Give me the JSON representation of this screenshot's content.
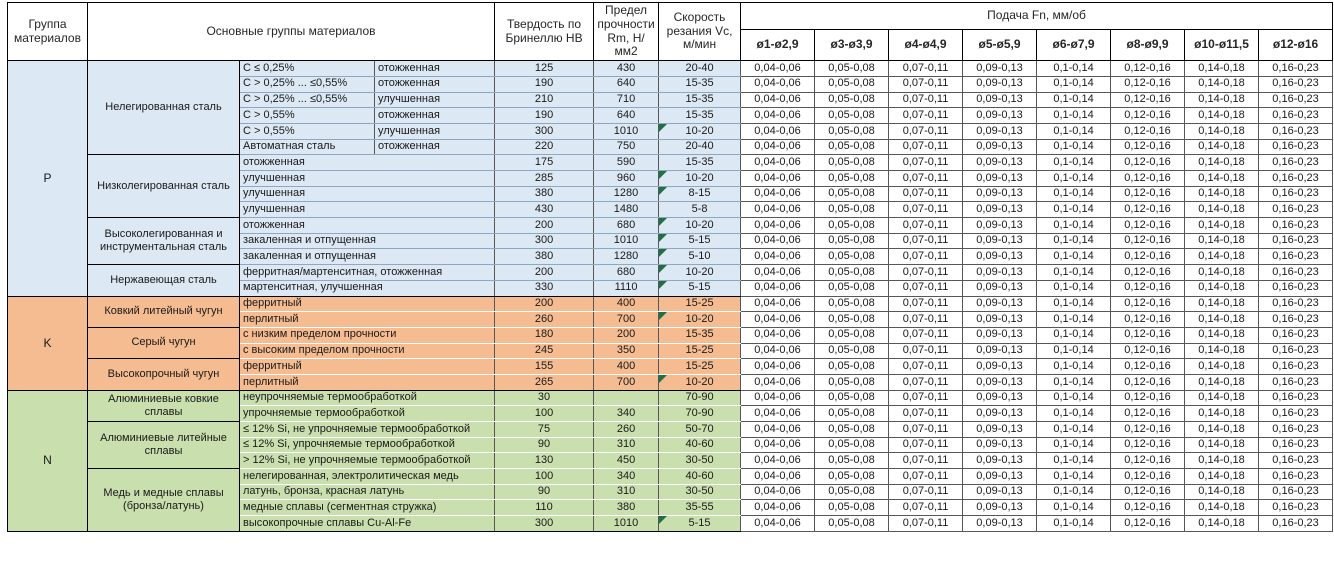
{
  "table": {
    "header": {
      "group_col": "Группа материалов",
      "materials_col": "Основные группы материалов",
      "hardness_col": "Твердость по Бринеллю HB",
      "strength_col": "Предел прочности Rm, Н/мм2",
      "speed_col": "Скорость резания Vc, м/мин",
      "feed_col": "Подача Fn, мм/об",
      "diameters": [
        "ø1-ø2,9",
        "ø3-ø3,9",
        "ø4-ø4,9",
        "ø5-ø5,9",
        "ø6-ø7,9",
        "ø8-ø9,9",
        "ø10-ø11,5",
        "ø12-ø16"
      ]
    },
    "feed_values": [
      "0,04-0,06",
      "0,05-0,08",
      "0,07-0,11",
      "0,09-0,13",
      "0,1-0,14",
      "0,12-0,16",
      "0,14-0,18",
      "0,16-0,23"
    ],
    "colors": {
      "P": "#dce8f3",
      "K": "#f5bc92",
      "N": "#c9dfae",
      "flag": "#1e7145"
    },
    "groups": [
      {
        "letter": "P",
        "subgroups": [
          {
            "name": "Нелегированная сталь",
            "rows": [
              {
                "desc1": "C ≤ 0,25%",
                "desc2": "отожженная",
                "hb": "125",
                "rm": "430",
                "vc": "20-40",
                "flag": false
              },
              {
                "desc1": "C > 0,25% ... ≤0,55%",
                "desc2": "отожженная",
                "hb": "190",
                "rm": "640",
                "vc": "15-35",
                "flag": false
              },
              {
                "desc1": "C > 0,25% ... ≤0,55%",
                "desc2": "улучшенная",
                "hb": "210",
                "rm": "710",
                "vc": "15-35",
                "flag": false
              },
              {
                "desc1": "C > 0,55%",
                "desc2": "отожженная",
                "hb": "190",
                "rm": "640",
                "vc": "15-35",
                "flag": false
              },
              {
                "desc1": "C > 0,55%",
                "desc2": "улучшенная",
                "hb": "300",
                "rm": "1010",
                "vc": "10-20",
                "flag": true
              },
              {
                "desc1": "Автоматная сталь",
                "desc2": "отожженная",
                "hb": "220",
                "rm": "750",
                "vc": "20-40",
                "flag": false
              }
            ]
          },
          {
            "name": "Низколегированная сталь",
            "rows": [
              {
                "desc": "отожженная",
                "hb": "175",
                "rm": "590",
                "vc": "15-35",
                "flag": false
              },
              {
                "desc": "улучшенная",
                "hb": "285",
                "rm": "960",
                "vc": "10-20",
                "flag": true
              },
              {
                "desc": "улучшенная",
                "hb": "380",
                "rm": "1280",
                "vc": "8-15",
                "flag": true
              },
              {
                "desc": "улучшенная",
                "hb": "430",
                "rm": "1480",
                "vc": "5-8",
                "flag": false
              }
            ]
          },
          {
            "name": "Высоколегированная и инструментальная сталь",
            "rows": [
              {
                "desc": "отожженная",
                "hb": "200",
                "rm": "680",
                "vc": "10-20",
                "flag": true
              },
              {
                "desc": "закаленная и отпущенная",
                "hb": "300",
                "rm": "1010",
                "vc": "5-15",
                "flag": true
              },
              {
                "desc": "закаленная и отпущенная",
                "hb": "380",
                "rm": "1280",
                "vc": "5-10",
                "flag": true
              }
            ]
          },
          {
            "name": "Нержавеющая сталь",
            "rows": [
              {
                "desc": "ферритная/мартенситная, отожженная",
                "hb": "200",
                "rm": "680",
                "vc": "10-20",
                "flag": true
              },
              {
                "desc": "мартенситная, улучшенная",
                "hb": "330",
                "rm": "1110",
                "vc": "5-15",
                "flag": true
              }
            ]
          }
        ]
      },
      {
        "letter": "K",
        "subgroups": [
          {
            "name": "Ковкий литейный чугун",
            "rows": [
              {
                "desc": "ферритный",
                "hb": "200",
                "rm": "400",
                "vc": "15-25",
                "flag": false
              },
              {
                "desc": "перлитный",
                "hb": "260",
                "rm": "700",
                "vc": "10-20",
                "flag": true
              }
            ]
          },
          {
            "name": "Серый чугун",
            "rows": [
              {
                "desc": "с низким пределом прочности",
                "hb": "180",
                "rm": "200",
                "vc": "15-35",
                "flag": false
              },
              {
                "desc": "с высоким пределом прочности",
                "hb": "245",
                "rm": "350",
                "vc": "15-25",
                "flag": false
              }
            ]
          },
          {
            "name": "Высокопрочный чугун",
            "rows": [
              {
                "desc": "ферритный",
                "hb": "155",
                "rm": "400",
                "vc": "15-25",
                "flag": false
              },
              {
                "desc": "перлитный",
                "hb": "265",
                "rm": "700",
                "vc": "10-20",
                "flag": true
              }
            ]
          }
        ]
      },
      {
        "letter": "N",
        "subgroups": [
          {
            "name": "Алюминиевые ковкие сплавы",
            "rows": [
              {
                "desc": "неупрочняемые термообработкой",
                "hb": "30",
                "rm": "",
                "vc": "70-90",
                "flag": false
              },
              {
                "desc": "упрочняемые термообработкой",
                "hb": "100",
                "rm": "340",
                "vc": "70-90",
                "flag": false
              }
            ]
          },
          {
            "name": "Алюминиевые литейные сплавы",
            "rows": [
              {
                "desc": "≤ 12% Si, не упрочняемые термообработкой",
                "hb": "75",
                "rm": "260",
                "vc": "50-70",
                "flag": false
              },
              {
                "desc": "≤ 12% Si, упрочняемые термообработкой",
                "hb": "90",
                "rm": "310",
                "vc": "40-60",
                "flag": false
              },
              {
                "desc": "> 12% Si, не упрочняемые термообработкой",
                "hb": "130",
                "rm": "450",
                "vc": "30-50",
                "flag": false
              }
            ]
          },
          {
            "name": "Медь и медные сплавы (бронза/латунь)",
            "rows": [
              {
                "desc": "нелегированная, электролитическая медь",
                "hb": "100",
                "rm": "340",
                "vc": "40-60",
                "flag": false
              },
              {
                "desc": "латунь, бронза, красная латунь",
                "hb": "90",
                "rm": "310",
                "vc": "30-50",
                "flag": false
              },
              {
                "desc": "медные сплавы (сегментная стружка)",
                "hb": "110",
                "rm": "380",
                "vc": "35-55",
                "flag": false
              },
              {
                "desc": "высокопрочные сплавы Cu-Al-Fe",
                "hb": "300",
                "rm": "1010",
                "vc": "5-15",
                "flag": true
              }
            ]
          }
        ]
      }
    ]
  }
}
